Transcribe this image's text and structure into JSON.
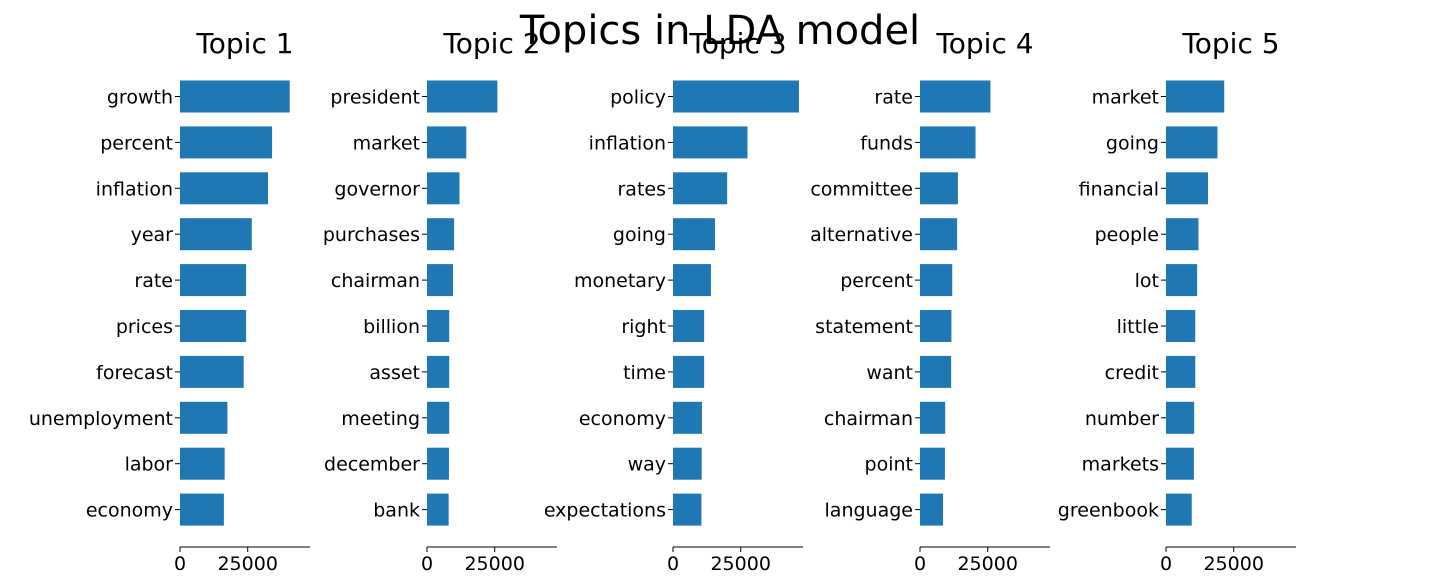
{
  "figure": {
    "suptitle": "Topics in LDA model"
  },
  "colors": {
    "bar": "#1f77b4",
    "axis": "#000000"
  },
  "chart_data": [
    {
      "type": "bar",
      "orientation": "horizontal",
      "title": "Topic 1",
      "categories": [
        "growth",
        "percent",
        "inflation",
        "year",
        "rate",
        "prices",
        "forecast",
        "unemployment",
        "labor",
        "economy"
      ],
      "values": [
        40500,
        34000,
        32500,
        26500,
        24400,
        24400,
        23500,
        17500,
        16500,
        16200
      ],
      "xlim": [
        0,
        48000
      ],
      "xticks": [
        0,
        25000
      ],
      "xlabel": "",
      "ylabel": ""
    },
    {
      "type": "bar",
      "orientation": "horizontal",
      "title": "Topic 2",
      "categories": [
        "president",
        "market",
        "governor",
        "purchases",
        "chairman",
        "billion",
        "asset",
        "meeting",
        "december",
        "bank"
      ],
      "values": [
        26000,
        14500,
        12000,
        10000,
        9600,
        8200,
        8200,
        8200,
        8100,
        8000
      ],
      "xlim": [
        0,
        48000
      ],
      "xticks": [
        0,
        25000
      ],
      "xlabel": "",
      "ylabel": ""
    },
    {
      "type": "bar",
      "orientation": "horizontal",
      "title": "Topic 3",
      "categories": [
        "policy",
        "inflation",
        "rates",
        "going",
        "monetary",
        "right",
        "time",
        "economy",
        "way",
        "expectations"
      ],
      "values": [
        46500,
        27500,
        20000,
        15500,
        14000,
        11500,
        11500,
        10700,
        10600,
        10500
      ],
      "xlim": [
        0,
        48000
      ],
      "xticks": [
        0,
        25000
      ],
      "xlabel": "",
      "ylabel": ""
    },
    {
      "type": "bar",
      "orientation": "horizontal",
      "title": "Topic 4",
      "categories": [
        "rate",
        "funds",
        "committee",
        "alternative",
        "percent",
        "statement",
        "want",
        "chairman",
        "point",
        "language"
      ],
      "values": [
        26000,
        20500,
        14000,
        13700,
        11900,
        11600,
        11500,
        9300,
        9200,
        8500
      ],
      "xlim": [
        0,
        48000
      ],
      "xticks": [
        0,
        25000
      ],
      "xlabel": "",
      "ylabel": ""
    },
    {
      "type": "bar",
      "orientation": "horizontal",
      "title": "Topic 5",
      "categories": [
        "market",
        "going",
        "financial",
        "people",
        "lot",
        "little",
        "credit",
        "number",
        "markets",
        "greenbook"
      ],
      "values": [
        21500,
        19000,
        15500,
        12000,
        11500,
        10800,
        10800,
        10400,
        10300,
        9500
      ],
      "xlim": [
        0,
        48000
      ],
      "xticks": [
        0,
        25000
      ],
      "xlabel": "",
      "ylabel": ""
    }
  ]
}
